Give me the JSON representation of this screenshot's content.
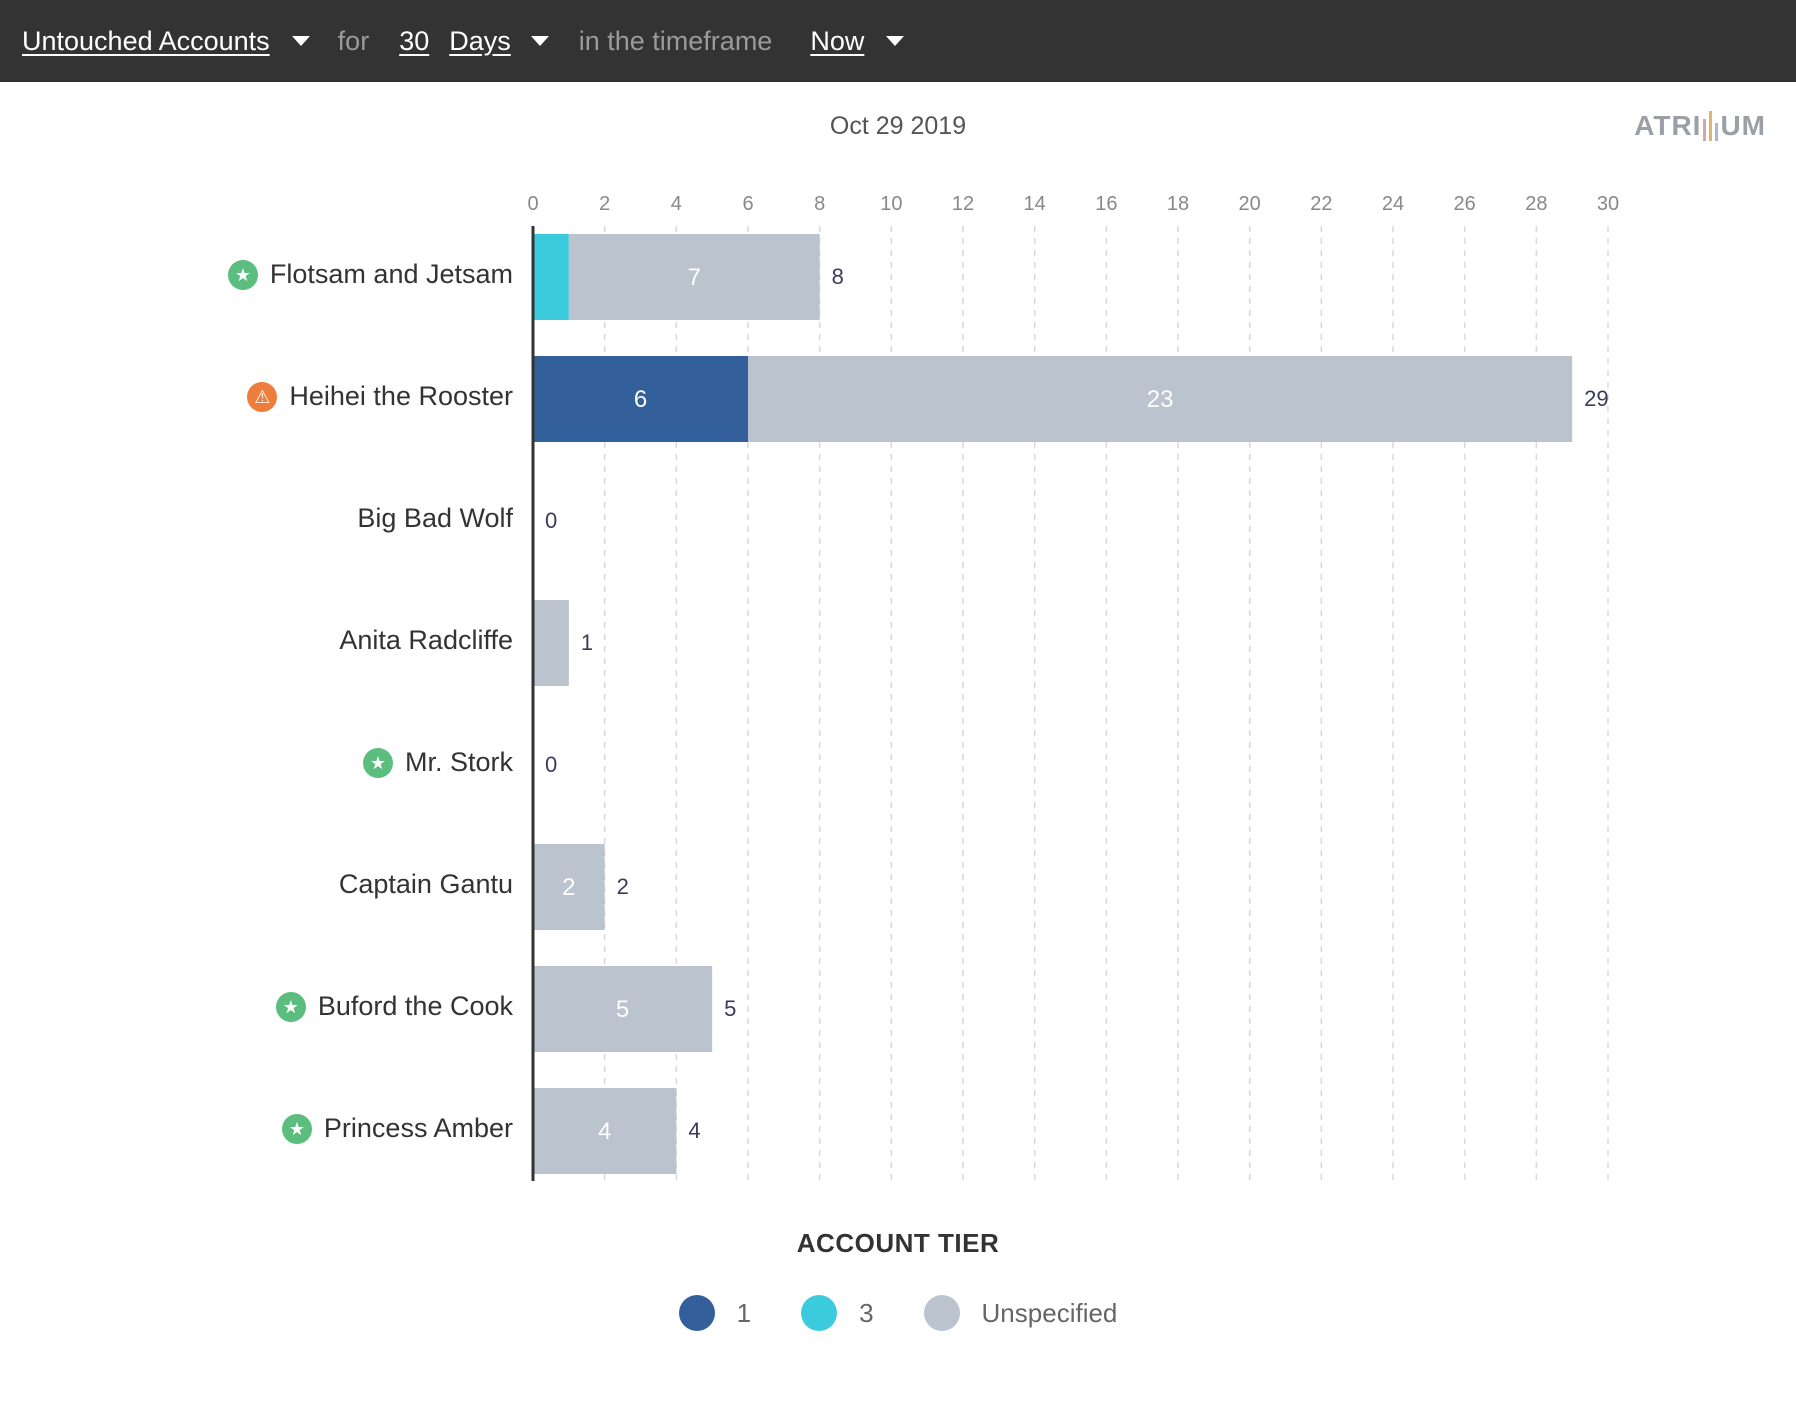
{
  "toolbar": {
    "metric": "Untouched Accounts",
    "for_text": "for",
    "period_value": "30",
    "period_unit": "Days",
    "timeframe_text": "in the timeframe",
    "timeframe": "Now"
  },
  "header": {
    "date": "Oct 29 2019",
    "logo_left": "ATRI",
    "logo_right": "UM"
  },
  "colors": {
    "tier_1": "#33609a",
    "tier_3": "#3ccbdd",
    "unspecified": "#bac3ce",
    "star_badge": "#5bbd7e",
    "warning_badge": "#ed7d3a",
    "topbar": "#333333"
  },
  "chart_data": {
    "type": "bar",
    "orientation": "horizontal",
    "stacked": true,
    "title": "Oct 29 2019",
    "xlim": [
      0,
      30
    ],
    "x_ticks": [
      0,
      2,
      4,
      6,
      8,
      10,
      12,
      14,
      16,
      18,
      20,
      22,
      24,
      26,
      28,
      30
    ],
    "grid": true,
    "categories": [
      "Flotsam and Jetsam",
      "Heihei the Rooster",
      "Big Bad Wolf",
      "Anita Radcliffe",
      "Mr. Stork",
      "Captain Gantu",
      "Buford the Cook",
      "Princess Amber"
    ],
    "category_badges": [
      "star",
      "warning",
      "",
      "",
      "star",
      "",
      "star",
      "star"
    ],
    "series": [
      {
        "name": "1",
        "color": "#33609a",
        "values": [
          0,
          6,
          0,
          0,
          0,
          0,
          0,
          0
        ]
      },
      {
        "name": "3",
        "color": "#3ccbdd",
        "values": [
          1,
          0,
          0,
          0,
          0,
          0,
          0,
          0
        ]
      },
      {
        "name": "Unspecified",
        "color": "#bac3ce",
        "values": [
          7,
          23,
          0,
          1,
          0,
          2,
          5,
          4
        ]
      }
    ],
    "totals": [
      8,
      29,
      0,
      1,
      0,
      2,
      5,
      4
    ],
    "legend_title": "ACCOUNT TIER",
    "legend_placement": "bottom"
  }
}
